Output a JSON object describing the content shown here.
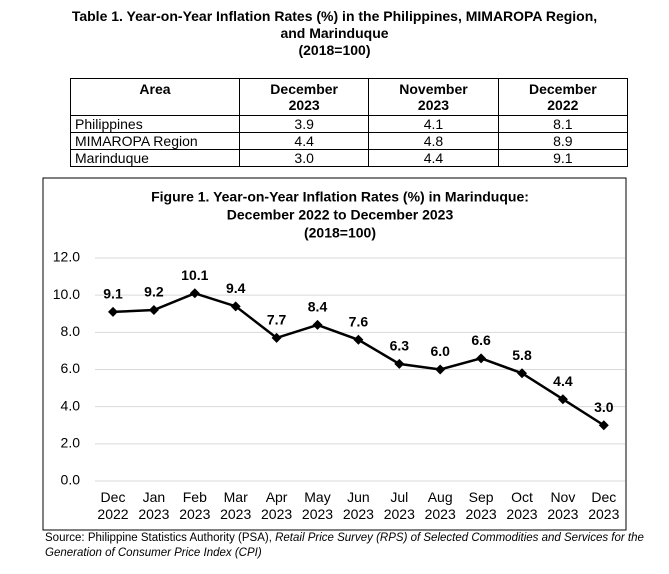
{
  "table": {
    "title": [
      "Table 1. Year-on-Year Inflation Rates (%) in the Philippines, MIMAROPA Region,",
      "and Marinduque",
      "(2018=100)"
    ],
    "header": [
      "Area",
      "December 2023",
      "November 2023",
      "December 2022"
    ],
    "rows": [
      [
        "Philippines",
        "3.9",
        "4.1",
        "8.1"
      ],
      [
        "MIMAROPA Region",
        "4.4",
        "4.8",
        "8.9"
      ],
      [
        "Marinduque",
        "3.0",
        "4.4",
        "9.1"
      ]
    ]
  },
  "chart_data": {
    "type": "line",
    "title": [
      "Figure 1. Year-on-Year Inflation Rates (%) in Marinduque:",
      "December 2022 to December 2023",
      "(2018=100)"
    ],
    "categories": [
      "Dec 2022",
      "Jan 2023",
      "Feb 2023",
      "Mar 2023",
      "Apr 2023",
      "May 2023",
      "Jun 2023",
      "Jul 2023",
      "Aug 2023",
      "Sep 2023",
      "Oct 2023",
      "Nov 2023",
      "Dec 2023"
    ],
    "values": [
      9.1,
      9.2,
      10.1,
      9.4,
      7.7,
      8.4,
      7.6,
      6.3,
      6.0,
      6.6,
      5.8,
      4.4,
      3.0
    ],
    "value_labels": [
      "9.1",
      "9.2",
      "10.1",
      "9.4",
      "7.7",
      "8.4",
      "7.6",
      "6.3",
      "6.0",
      "6.6",
      "5.8",
      "4.4",
      "3.0"
    ],
    "color": "#000000",
    "ylim": [
      0,
      12
    ],
    "yticks": [
      {
        "value": 0,
        "label": "0.0"
      },
      {
        "value": 2,
        "label": "2.0"
      },
      {
        "value": 4,
        "label": "4.0"
      },
      {
        "value": 6,
        "label": "6.0"
      },
      {
        "value": 8,
        "label": "8.0"
      },
      {
        "value": 10,
        "label": "10.0"
      },
      {
        "value": 12,
        "label": "12.0"
      }
    ],
    "grid": true
  },
  "source": {
    "text": "Source: Philippine Statistics Authority (PSA), ",
    "italic": "Retail Price Survey (RPS) of Selected Commodities and Services for the Generation of Consumer Price Index (CPI)"
  }
}
